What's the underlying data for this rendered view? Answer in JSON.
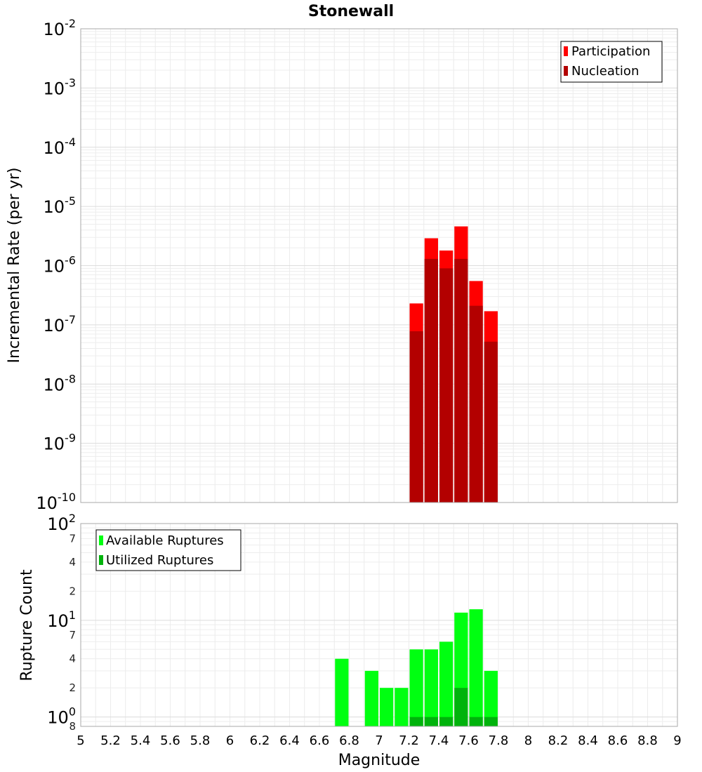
{
  "chart_data": [
    {
      "type": "bar",
      "title": "Stonewall",
      "xlabel": "",
      "ylabel": "Incremental Rate (per yr)",
      "yscale": "log",
      "ylim": [
        1e-10,
        0.01
      ],
      "xlim": [
        5,
        9
      ],
      "bin_width": 0.1,
      "grid": true,
      "legend_position": "top-right",
      "x": [
        7.25,
        7.35,
        7.45,
        7.55,
        7.65,
        7.75
      ],
      "series": [
        {
          "name": "Participation",
          "color": "#ff0000",
          "values": [
            2.3e-07,
            2.9e-06,
            1.8e-06,
            4.6e-06,
            5.5e-07,
            1.7e-07
          ]
        },
        {
          "name": "Nucleation",
          "color": "#b30000",
          "values": [
            7.8e-08,
            1.3e-06,
            9e-07,
            1.3e-06,
            2.1e-07,
            5.2e-08
          ]
        }
      ],
      "y_major_ticks": [
        {
          "base": "10",
          "exp": "-10"
        },
        {
          "base": "10",
          "exp": "-9"
        },
        {
          "base": "10",
          "exp": "-8"
        },
        {
          "base": "10",
          "exp": "-7"
        },
        {
          "base": "10",
          "exp": "-6"
        },
        {
          "base": "10",
          "exp": "-5"
        },
        {
          "base": "10",
          "exp": "-4"
        },
        {
          "base": "10",
          "exp": "-3"
        },
        {
          "base": "10",
          "exp": "-2"
        }
      ]
    },
    {
      "type": "bar",
      "title": "",
      "xlabel": "Magnitude",
      "ylabel": "Rupture Count",
      "yscale": "log",
      "ylim": [
        0.8,
        100
      ],
      "xlim": [
        5,
        9
      ],
      "bin_width": 0.1,
      "grid": true,
      "legend_position": "top-left",
      "series": [
        {
          "name": "Available Ruptures",
          "color": "#00ff11",
          "x": [
            6.75,
            6.95,
            7.05,
            7.15,
            7.25,
            7.35,
            7.45,
            7.55,
            7.65,
            7.75
          ],
          "values": [
            4,
            3,
            2,
            2,
            5,
            5,
            6,
            12,
            13,
            3
          ]
        },
        {
          "name": "Utilized Ruptures",
          "color": "#00b30c",
          "x": [
            7.25,
            7.35,
            7.45,
            7.55,
            7.65,
            7.75
          ],
          "values": [
            1,
            1,
            1,
            2,
            1,
            1
          ]
        }
      ],
      "y_major_ticks": [
        {
          "base": "10",
          "exp": "0"
        },
        {
          "base": "10",
          "exp": "1"
        },
        {
          "base": "10",
          "exp": "2"
        }
      ],
      "y_minor_labels": [
        "8",
        "2",
        "4",
        "7",
        "2",
        "4",
        "7"
      ],
      "y_minor_values": [
        0.8,
        2,
        4,
        7,
        20,
        40,
        70
      ],
      "x_tick_labels": [
        "5",
        "5.2",
        "5.4",
        "5.6",
        "5.8",
        "6",
        "6.2",
        "6.4",
        "6.6",
        "6.8",
        "7",
        "7.2",
        "7.4",
        "7.6",
        "7.8",
        "8",
        "8.2",
        "8.4",
        "8.6",
        "8.8",
        "9"
      ]
    }
  ]
}
